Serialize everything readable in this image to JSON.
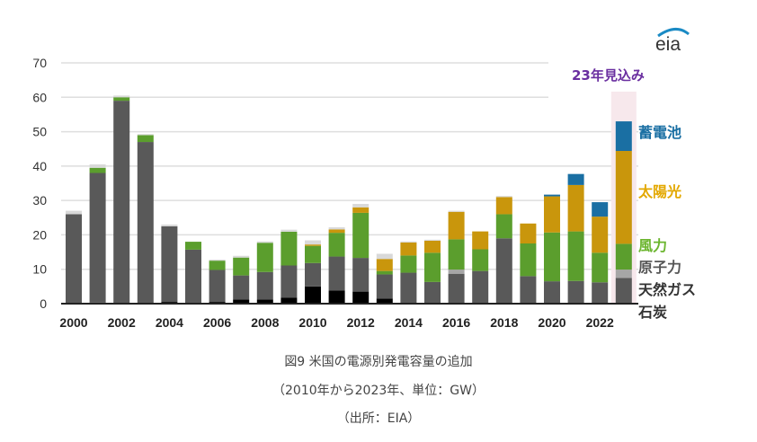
{
  "chart_data": {
    "type": "bar",
    "stacked": true,
    "title": "",
    "xlabel": "",
    "ylabel": "",
    "ylim": [
      0,
      70
    ],
    "yticks": [
      0,
      10,
      20,
      30,
      40,
      50,
      60,
      70
    ],
    "grid": true,
    "x": [
      2000,
      2001,
      2002,
      2003,
      2004,
      2005,
      2006,
      2007,
      2008,
      2009,
      2010,
      2011,
      2012,
      2013,
      2014,
      2015,
      2016,
      2017,
      2018,
      2019,
      2020,
      2021,
      2022,
      2023
    ],
    "xtick_labels": [
      "2000",
      "2002",
      "2004",
      "2006",
      "2008",
      "2010",
      "2012",
      "2014",
      "2016",
      "2018",
      "2020",
      "2022"
    ],
    "forecast_year": 2023,
    "forecast_label": "23年見込み",
    "legend_placement": "right",
    "series": [
      {
        "name": "石炭",
        "key": "coal",
        "color": "#000000",
        "values": [
          0,
          0.3,
          0,
          0,
          0.5,
          0,
          0.5,
          1.2,
          1.2,
          1.7,
          5.0,
          3.8,
          3.5,
          1.5,
          0,
          0,
          0,
          0,
          0,
          0,
          0,
          0,
          0,
          0
        ]
      },
      {
        "name": "天然ガス",
        "key": "gas",
        "color": "#595959",
        "values": [
          26,
          37.7,
          59,
          47,
          22,
          15.7,
          9.3,
          7.0,
          8.0,
          9.4,
          6.8,
          9.9,
          9.8,
          7.0,
          9.0,
          6.3,
          8.7,
          9.5,
          19.0,
          8.0,
          6.5,
          6.6,
          6.2,
          7.5
        ]
      },
      {
        "name": "原子力",
        "key": "nuclear",
        "color": "#a6a6a6",
        "values": [
          0,
          0,
          0,
          0,
          0,
          0,
          0,
          0,
          0,
          0,
          0,
          0,
          0,
          0,
          0,
          0,
          1.2,
          0,
          0,
          0,
          0,
          0,
          0,
          2.4
        ]
      },
      {
        "name": "風力",
        "key": "wind",
        "color": "#5b9e2d",
        "values": [
          0,
          1.5,
          1.0,
          2.0,
          0,
          2.3,
          2.7,
          5.2,
          8.5,
          9.8,
          5.0,
          6.9,
          13.1,
          1.0,
          5.0,
          8.5,
          8.8,
          6.3,
          7.0,
          9.5,
          14.2,
          14.4,
          8.6,
          7.5
        ]
      },
      {
        "name": "太陽光",
        "key": "solar",
        "color": "#c9960c",
        "values": [
          0,
          0,
          0,
          0,
          0,
          0,
          0,
          0,
          0,
          0,
          0.4,
          1.0,
          1.6,
          3.5,
          3.8,
          3.5,
          8.0,
          5.2,
          5.0,
          5.8,
          10.5,
          13.5,
          10.5,
          27.0
        ]
      },
      {
        "name": "蓄電池",
        "key": "battery",
        "color": "#1a6fa3",
        "values": [
          0,
          0,
          0,
          0,
          0,
          0,
          0,
          0,
          0,
          0,
          0,
          0,
          0,
          0,
          0,
          0,
          0,
          0,
          0,
          0,
          0.5,
          3.2,
          4.2,
          8.6
        ]
      },
      {
        "name": "その他",
        "key": "other",
        "color": "#d9d9d9",
        "values": [
          1.0,
          1.0,
          0.5,
          0.3,
          0.5,
          0,
          0.3,
          0.5,
          0.4,
          0.6,
          1.2,
          0.6,
          1.0,
          1.5,
          0.3,
          0.3,
          0.3,
          0,
          0.3,
          0,
          0,
          0,
          0,
          0
        ]
      }
    ],
    "legend": [
      {
        "label": "蓄電池",
        "color": "#1a6fa3"
      },
      {
        "label": "太陽光",
        "color": "#e3a800"
      },
      {
        "label": "風力",
        "color": "#6bb52e"
      },
      {
        "label": "原子力",
        "color": "#555555"
      },
      {
        "label": "天然ガス",
        "color": "#333333"
      },
      {
        "label": "石炭",
        "color": "#333333"
      }
    ]
  },
  "logo": {
    "text": "eia"
  },
  "caption": {
    "line1": "図9 米国の電源別発電容量の追加",
    "line2": "（2010年から2023年、単位：GW）",
    "line3": "（出所：EIA）"
  }
}
